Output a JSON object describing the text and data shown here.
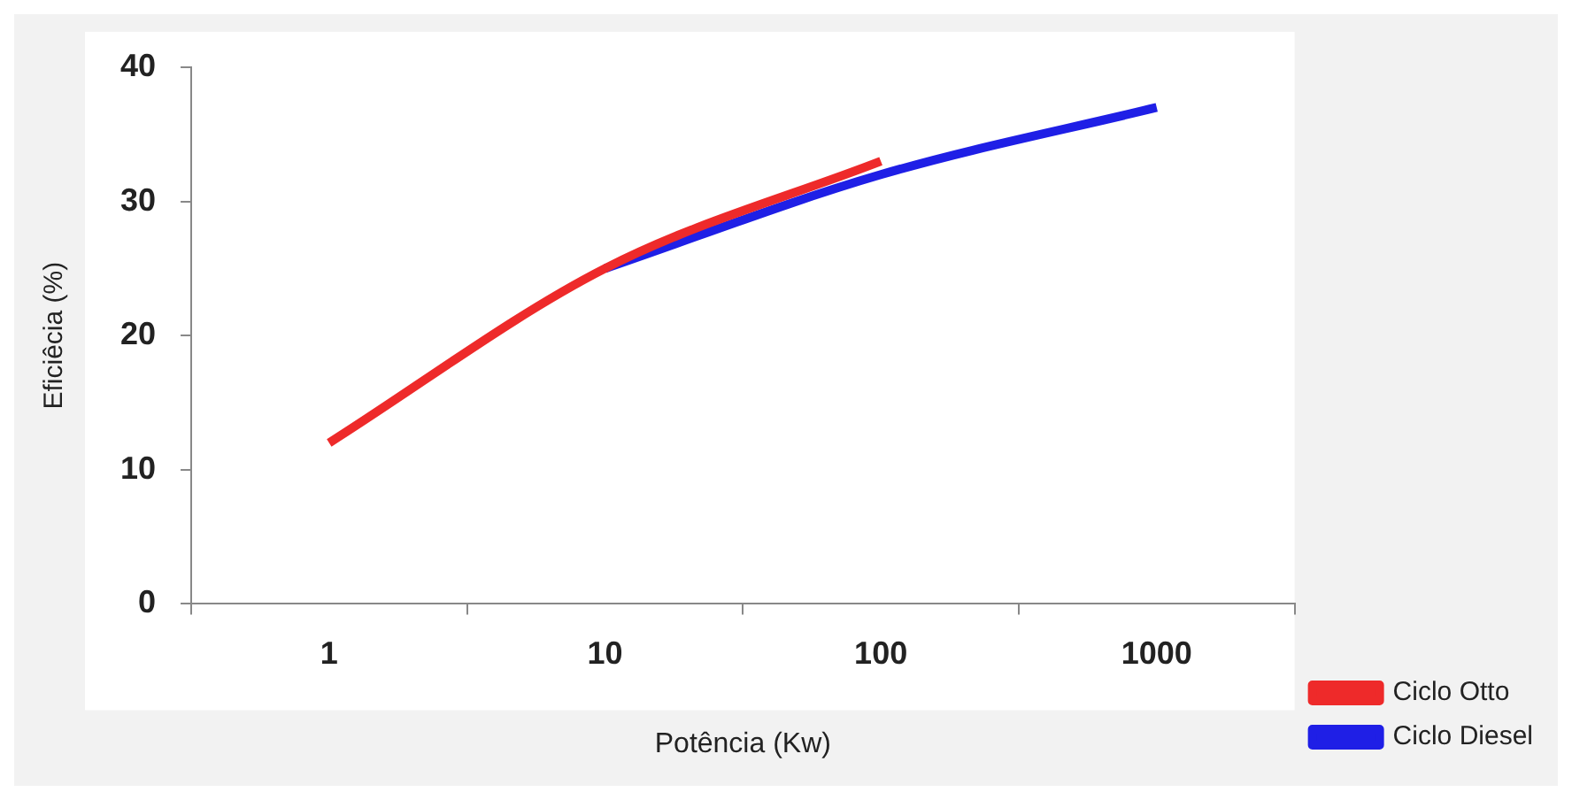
{
  "chart_data": {
    "type": "line",
    "xlabel": "Potência (Kw)",
    "ylabel": "Eficiêcia (%)",
    "categories": [
      "1",
      "10",
      "100",
      "1000"
    ],
    "series": [
      {
        "name": "Ciclo Otto",
        "color": "#ee2a2a",
        "values": [
          12,
          25,
          33,
          null
        ]
      },
      {
        "name": "Ciclo Diesel",
        "color": "#1f1fe6",
        "values": [
          null,
          25,
          32,
          37
        ]
      }
    ],
    "ylim": [
      0,
      40
    ],
    "yticks": [
      0,
      10,
      20,
      30,
      40
    ],
    "grid": false,
    "legend": "right",
    "marker": "none",
    "line_style": "solid"
  }
}
